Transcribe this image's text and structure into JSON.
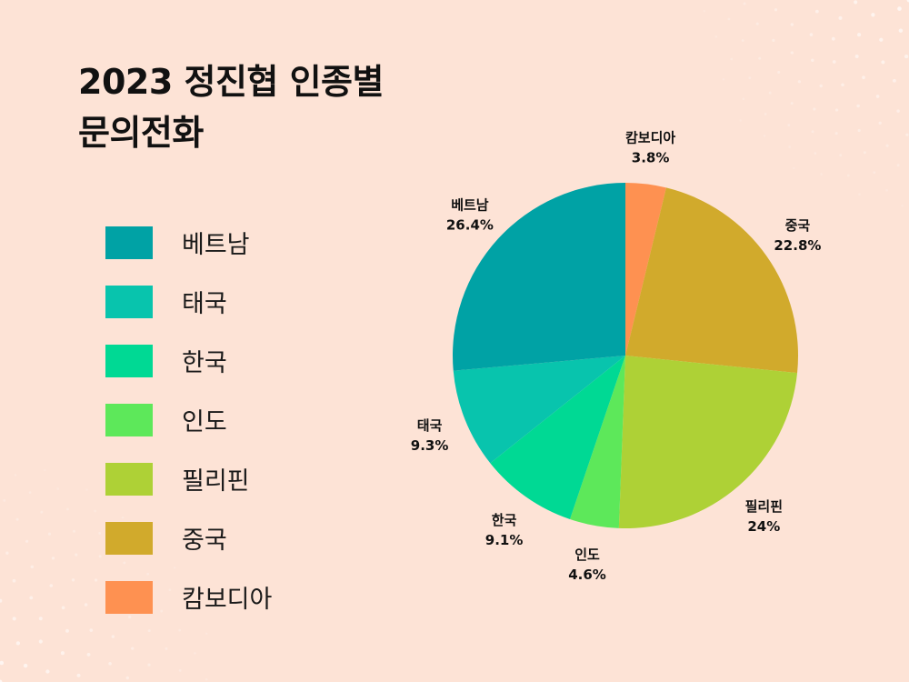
{
  "title": {
    "line1": "2023 정진협 인종별",
    "line2": "문의전화"
  },
  "colors": {
    "background": "#fde3d6",
    "베트남": "#00a2a5",
    "태국": "#08c4ad",
    "한국": "#00d994",
    "인도": "#5de85a",
    "필리핀": "#aed136",
    "중국": "#d1aa2c",
    "캄보디아": "#fe9151"
  },
  "legend": {
    "items": [
      {
        "label": "베트남",
        "color": "#00a2a5"
      },
      {
        "label": "태국",
        "color": "#08c4ad"
      },
      {
        "label": "한국",
        "color": "#00d994"
      },
      {
        "label": "인도",
        "color": "#5de85a"
      },
      {
        "label": "필리핀",
        "color": "#aed136"
      },
      {
        "label": "중국",
        "color": "#d1aa2c"
      },
      {
        "label": "캄보디아",
        "color": "#fe9151"
      }
    ]
  },
  "chart_data": {
    "type": "pie",
    "title": "2023 정진협 인종별 문의전화",
    "legend_position": "left",
    "slices": [
      {
        "label": "캄보디아",
        "value": 3.8,
        "display": "3.8%",
        "color": "#fe9151"
      },
      {
        "label": "중국",
        "value": 22.8,
        "display": "22.8%",
        "color": "#d1aa2c"
      },
      {
        "label": "필리핀",
        "value": 24,
        "display": "24%",
        "color": "#aed136"
      },
      {
        "label": "인도",
        "value": 4.6,
        "display": "4.6%",
        "color": "#5de85a"
      },
      {
        "label": "한국",
        "value": 9.1,
        "display": "9.1%",
        "color": "#00d994"
      },
      {
        "label": "태국",
        "value": 9.3,
        "display": "9.3%",
        "color": "#08c4ad"
      },
      {
        "label": "베트남",
        "value": 26.4,
        "display": "26.4%",
        "color": "#00a2a5"
      }
    ]
  }
}
